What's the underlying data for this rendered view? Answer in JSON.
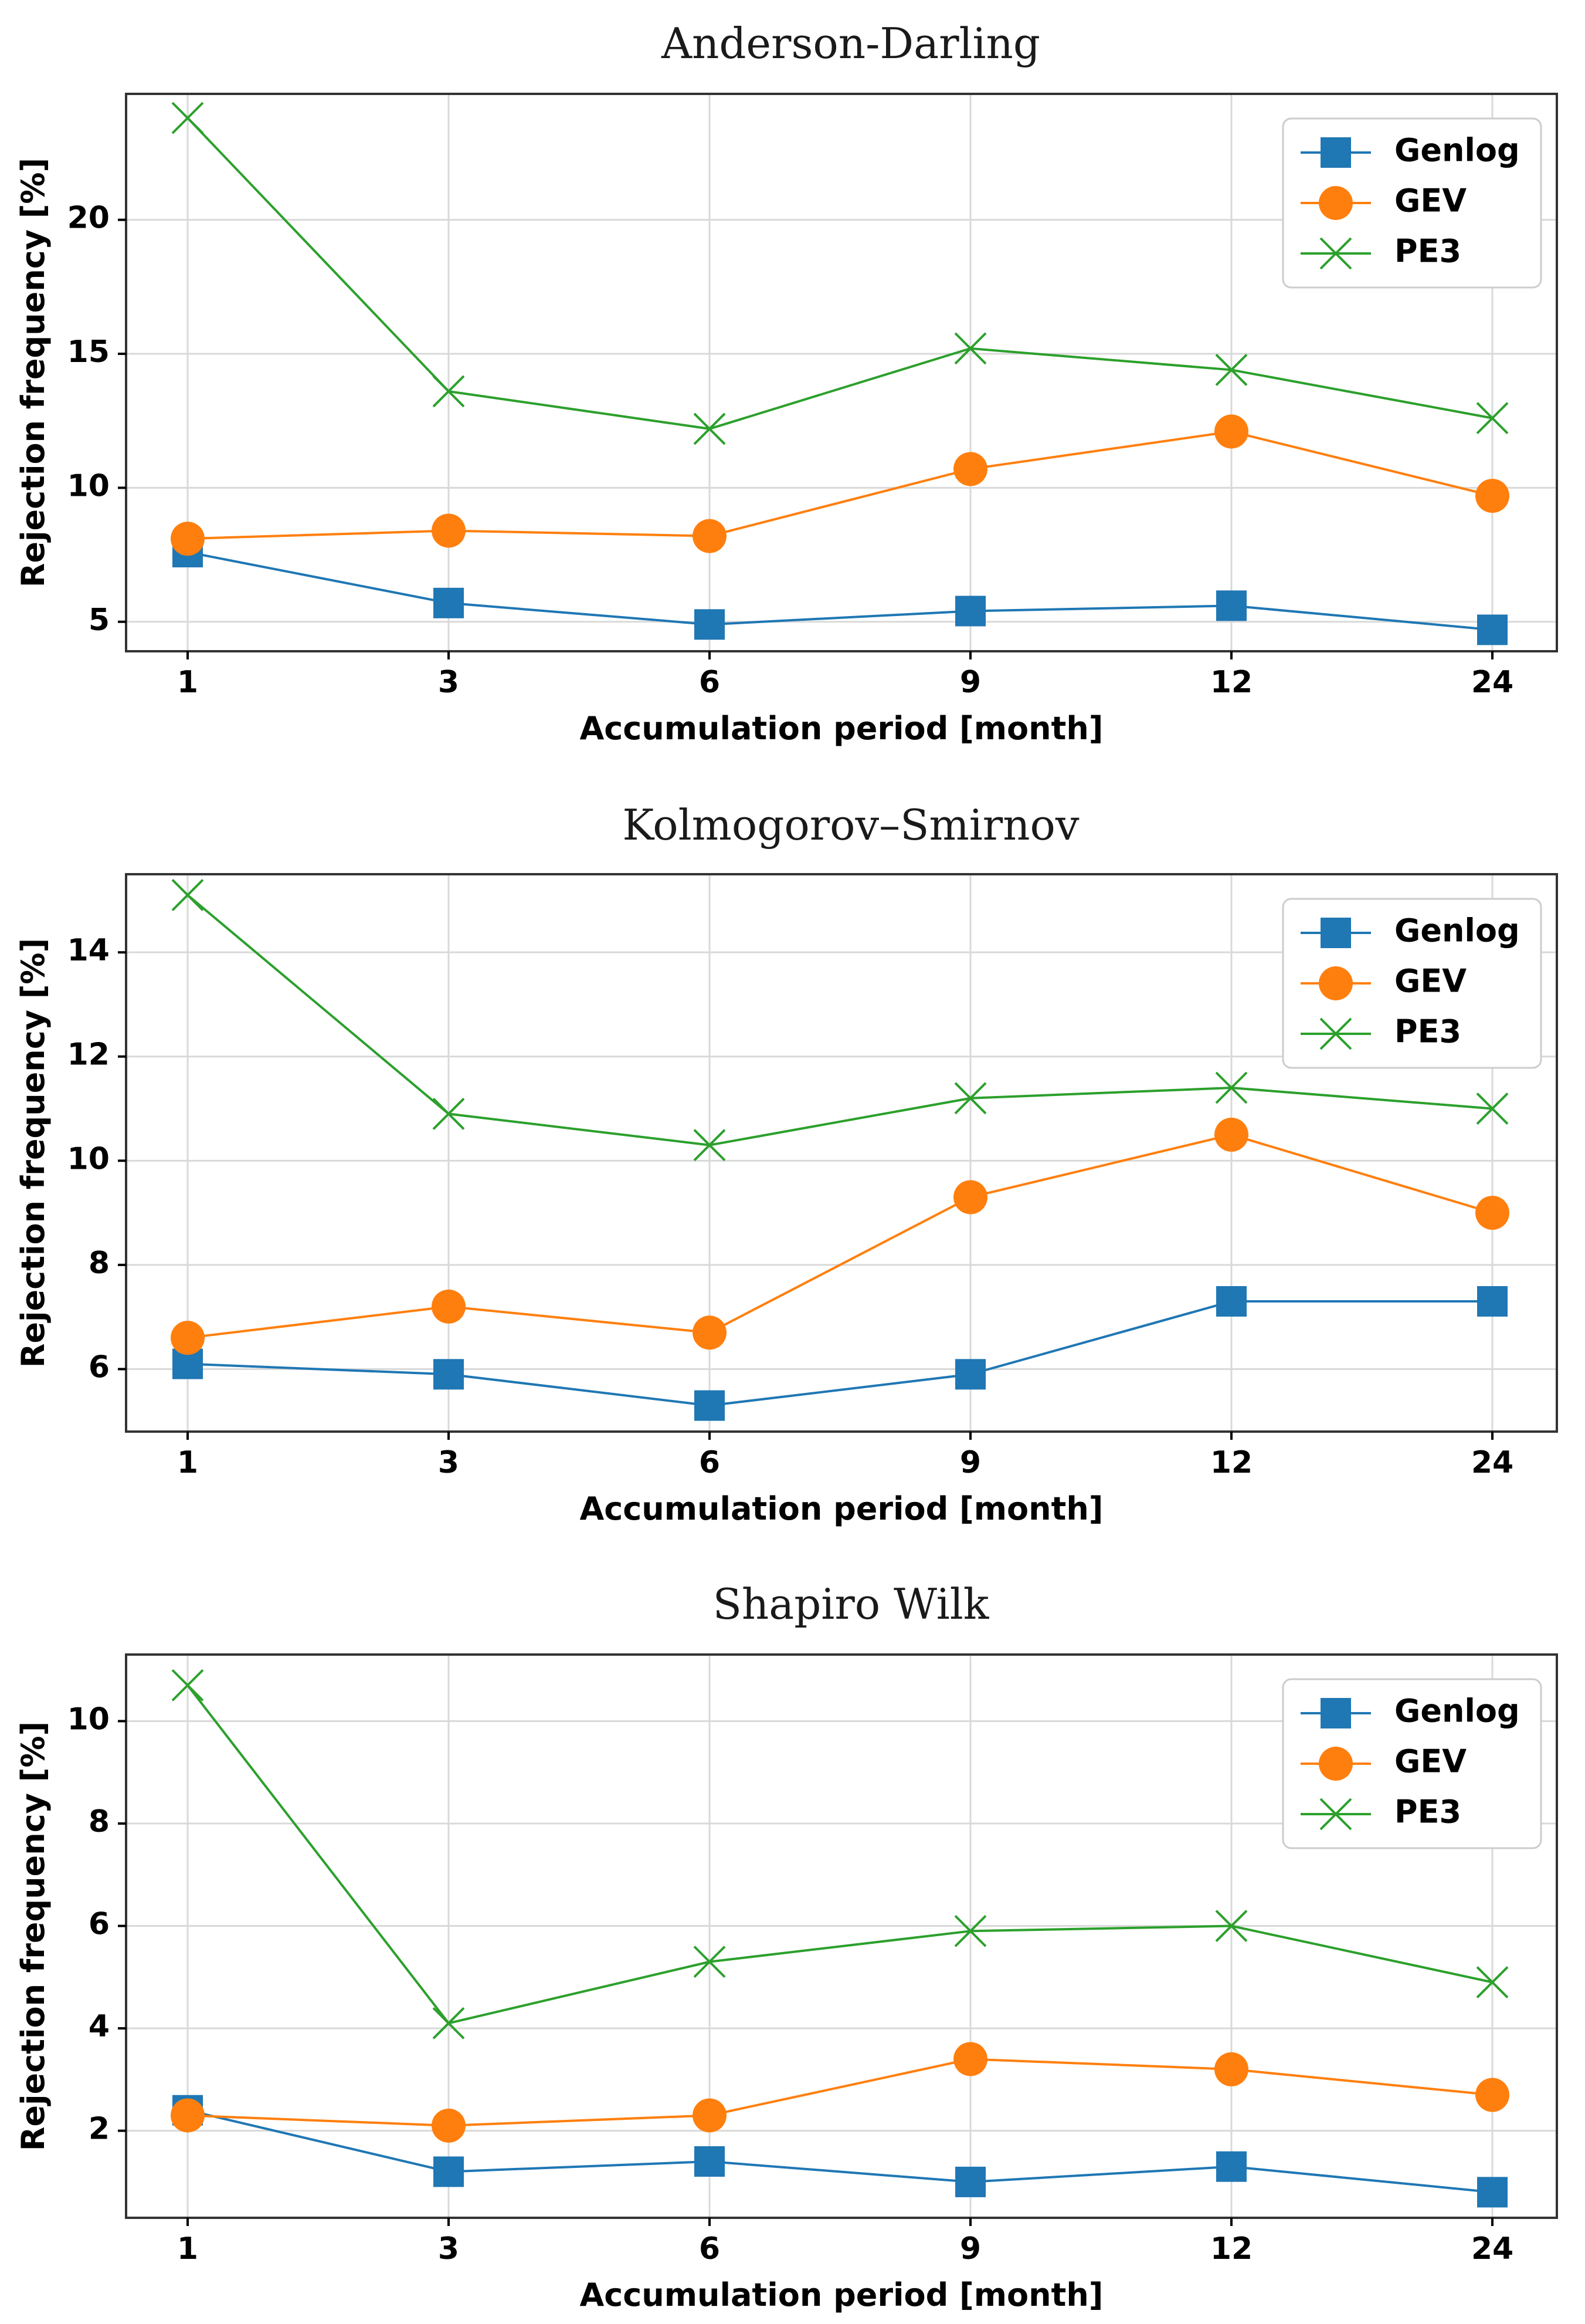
{
  "chart_data": [
    {
      "type": "line",
      "title": "Anderson-Darling",
      "xlabel": "Accumulation period [month]",
      "ylabel": "Rejection frequency [%]",
      "categories": [
        "1",
        "3",
        "6",
        "9",
        "12",
        "24"
      ],
      "yticks": [
        5,
        10,
        15,
        20
      ],
      "ylim": [
        3.9,
        24.7
      ],
      "grid": true,
      "legend_position": "top-right",
      "series": [
        {
          "name": "Genlog",
          "marker": "square",
          "color": "#1f77b4",
          "values": [
            7.6,
            5.7,
            4.9,
            5.4,
            5.6,
            4.7
          ]
        },
        {
          "name": "GEV",
          "marker": "circle",
          "color": "#ff7f0e",
          "values": [
            8.1,
            8.4,
            8.2,
            10.7,
            12.1,
            9.7
          ]
        },
        {
          "name": "PE3",
          "marker": "x",
          "color": "#2ca02c",
          "values": [
            23.8,
            13.6,
            12.2,
            15.2,
            14.4,
            12.6
          ]
        }
      ]
    },
    {
      "type": "line",
      "title": "Kolmogorov–Smirnov",
      "xlabel": "Accumulation period [month]",
      "ylabel": "Rejection frequency [%]",
      "categories": [
        "1",
        "3",
        "6",
        "9",
        "12",
        "24"
      ],
      "yticks": [
        6,
        8,
        10,
        12,
        14
      ],
      "ylim": [
        4.8,
        15.5
      ],
      "grid": true,
      "legend_position": "top-right",
      "series": [
        {
          "name": "Genlog",
          "marker": "square",
          "color": "#1f77b4",
          "values": [
            6.1,
            5.9,
            5.3,
            5.9,
            7.3,
            7.3
          ]
        },
        {
          "name": "GEV",
          "marker": "circle",
          "color": "#ff7f0e",
          "values": [
            6.6,
            7.2,
            6.7,
            9.3,
            10.5,
            9.0
          ]
        },
        {
          "name": "PE3",
          "marker": "x",
          "color": "#2ca02c",
          "values": [
            15.1,
            10.9,
            10.3,
            11.2,
            11.4,
            11.0
          ]
        }
      ]
    },
    {
      "type": "line",
      "title": "Shapiro Wilk",
      "xlabel": "Accumulation period [month]",
      "ylabel": "Rejection frequency [%]",
      "categories": [
        "1",
        "3",
        "6",
        "9",
        "12",
        "24"
      ],
      "yticks": [
        2,
        4,
        6,
        8,
        10
      ],
      "ylim": [
        0.3,
        11.3
      ],
      "grid": true,
      "legend_position": "top-right",
      "series": [
        {
          "name": "Genlog",
          "marker": "square",
          "color": "#1f77b4",
          "values": [
            2.4,
            1.2,
            1.4,
            1.0,
            1.3,
            0.8
          ]
        },
        {
          "name": "GEV",
          "marker": "circle",
          "color": "#ff7f0e",
          "values": [
            2.3,
            2.1,
            2.3,
            3.4,
            3.2,
            2.7
          ]
        },
        {
          "name": "PE3",
          "marker": "x",
          "color": "#2ca02c",
          "values": [
            10.7,
            4.1,
            5.3,
            5.9,
            6.0,
            4.9
          ]
        }
      ]
    }
  ]
}
